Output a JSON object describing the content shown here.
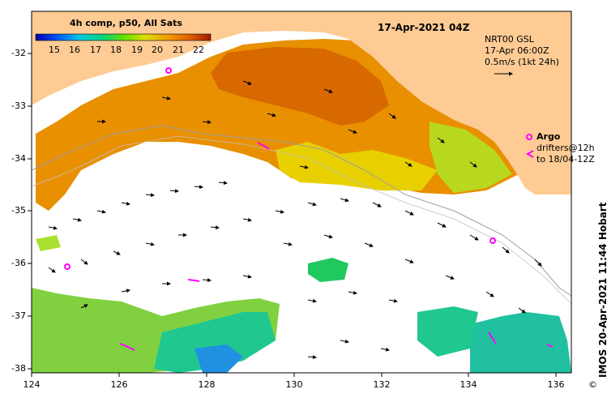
{
  "title": "17-Apr-2021 04Z",
  "legend": {
    "title": "4h comp, p50, All Sats",
    "scale_labels": [
      "15",
      "16",
      "17",
      "18",
      "19",
      "20",
      "21",
      "22"
    ]
  },
  "current_info": {
    "line1": "NRT00 GSL",
    "line2": "17-Apr 06:00Z",
    "line3": "0.5m/s (1kt 24h)"
  },
  "argo": {
    "label": "Argo",
    "drifters_line1": "drifters@12h",
    "drifters_line2": "to 18/04-12Z"
  },
  "credit": "IMOS 20-Apr-2021 11:44 Hobart",
  "credit_symbol": "©",
  "axes": {
    "x_ticks": [
      "124",
      "126",
      "128",
      "130",
      "132",
      "134",
      "136"
    ],
    "y_ticks": [
      "-32",
      "-33",
      "-34",
      "-35",
      "-36",
      "-37",
      "-38"
    ]
  },
  "colors": {
    "land": "#fecb94",
    "cold": "#0000b0",
    "warm": "#c83000",
    "argo": "#ff00ff"
  }
}
